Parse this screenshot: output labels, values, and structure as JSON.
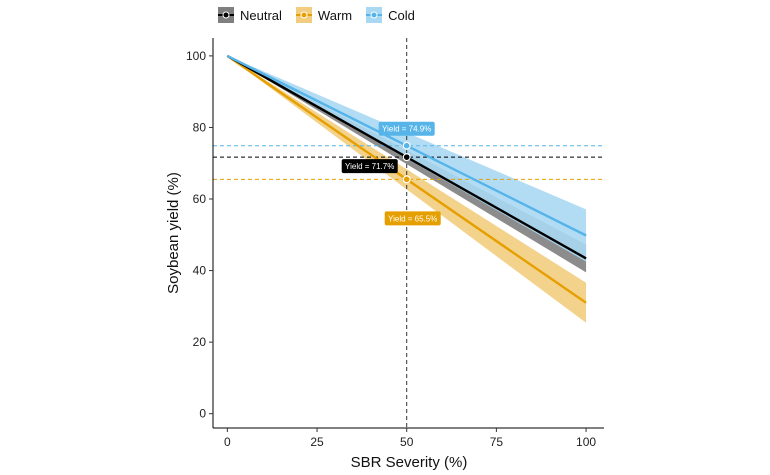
{
  "chart_data": {
    "type": "line",
    "xlabel": "SBR Severity (%)",
    "ylabel": "Soybean yield (%)",
    "xlim": [
      -4,
      105
    ],
    "ylim": [
      -4,
      105
    ],
    "x_ticks": [
      0,
      25,
      50,
      75,
      100
    ],
    "y_ticks": [
      0,
      20,
      40,
      60,
      80,
      100
    ],
    "grid": false,
    "legend_position": "top",
    "reference_x": 50,
    "series": [
      {
        "name": "Neutral",
        "color": "#000000",
        "band_color": "#7f7f7f",
        "x": [
          0,
          100
        ],
        "y": [
          100,
          43.4
        ],
        "ci_lower": [
          100,
          39.5
        ],
        "ci_upper": [
          100,
          47.3
        ],
        "marker": {
          "x": 50,
          "y": 71.7,
          "label": "Yield = 71.7%"
        }
      },
      {
        "name": "Warm",
        "color": "#E69F00",
        "band_color": "#F2CD7F",
        "x": [
          0,
          100
        ],
        "y": [
          100,
          31.0
        ],
        "ci_lower": [
          100,
          25.4
        ],
        "ci_upper": [
          100,
          36.6
        ],
        "marker": {
          "x": 50,
          "y": 65.5,
          "label": "Yield = 65.5%"
        }
      },
      {
        "name": "Cold",
        "color": "#56B4E9",
        "band_color": "#A9D8F3",
        "x": [
          0,
          100
        ],
        "y": [
          100,
          49.8
        ],
        "ci_lower": [
          100,
          42.5
        ],
        "ci_upper": [
          100,
          57.1
        ],
        "marker": {
          "x": 50,
          "y": 74.9,
          "label": "Yield = 74.9%"
        }
      }
    ]
  }
}
